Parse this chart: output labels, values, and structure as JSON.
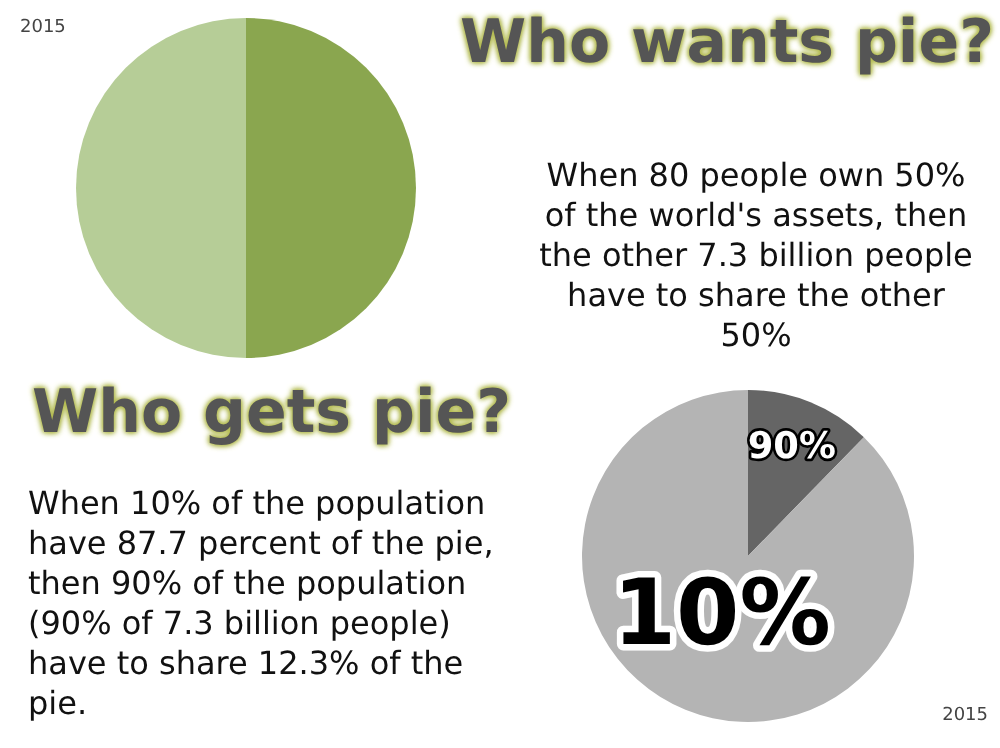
{
  "chart_data": [
    {
      "type": "pie",
      "title": "Who wants pie?",
      "categories": [
        null,
        null
      ],
      "values": [
        50,
        50
      ],
      "colors": [
        "#8aa64f",
        "#b6cd97"
      ],
      "annotations": [
        "2015",
        "When 80 people own 50% of the world's assets, then the other 7.3 billion people have to share the other 50%"
      ]
    },
    {
      "type": "pie",
      "title": "Who gets pie?",
      "categories": [
        "90%",
        "10%"
      ],
      "values": [
        12.3,
        87.7
      ],
      "colors": [
        "#656565",
        "#b4b4b4"
      ],
      "annotations": [
        "2015",
        "When 10% of the population have 87.7 percent of the pie, then 90% of the population (90% of 7.3 billion people) have to share 12.3% of the  pie."
      ]
    }
  ]
}
